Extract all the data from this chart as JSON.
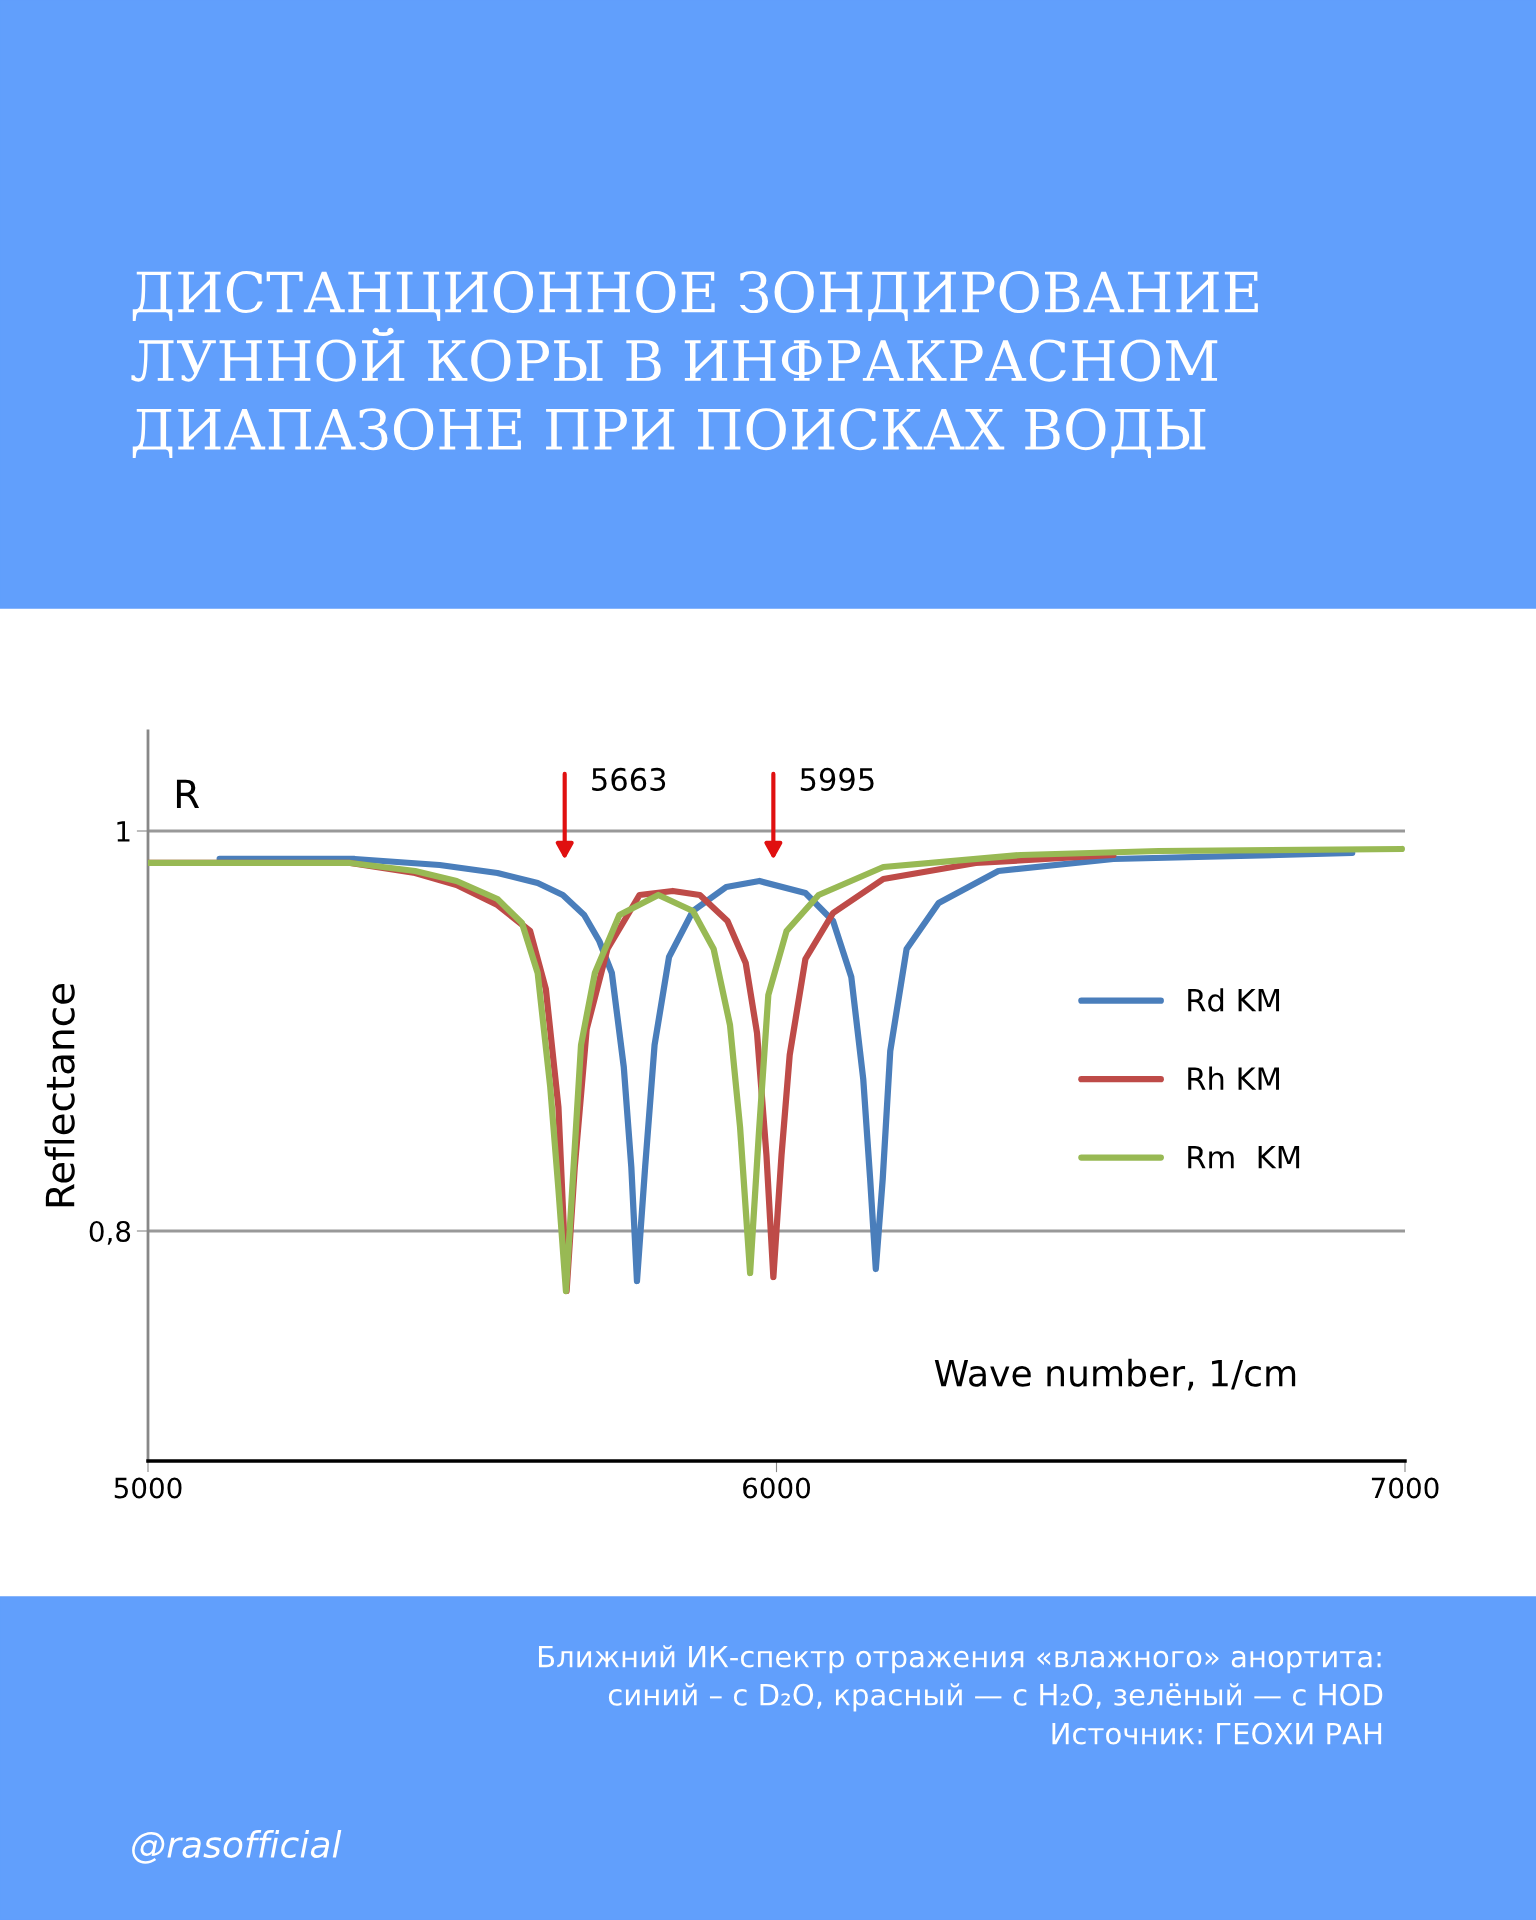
{
  "chart_data": {
    "type": "line",
    "title": "ДИСТАНЦИОННОЕ ЗОНДИРОВАНИЕ\nЛУННОЙ КОРЫ В ИНФРАКРАСНОМ\nДИАПАЗОНЕ ПРИ ПОИСКАХ ВОДЫ",
    "xlabel": "Wave number, 1/cm",
    "ylabel": "Reflectance",
    "xlim": [
      5000,
      7000
    ],
    "xticks": [
      5000,
      6000,
      7000
    ],
    "ylim": [
      0.685,
      1.05
    ],
    "yticks": [
      {
        "value": 0.8,
        "label": "0,8"
      },
      1
    ],
    "grid": "y",
    "legend": "right",
    "marker": "none",
    "line_style": "solid",
    "series": [
      {
        "name": "Rd KM",
        "color": "#4a7ebb",
        "x": [
          5114,
          5329,
          5464,
          5556,
          5620,
          5660,
          5694,
          5718,
          5738,
          5757,
          5769,
          5778,
          5791,
          5806,
          5829,
          5867,
          5920,
          5973,
          6046,
          6090,
          6119,
          6138,
          6149,
          6158,
          6169,
          6181,
          6207,
          6258,
          6353,
          6536,
          6916
        ],
        "values": [
          0.986,
          0.986,
          0.983,
          0.979,
          0.974,
          0.968,
          0.958,
          0.945,
          0.929,
          0.882,
          0.832,
          0.775,
          0.832,
          0.893,
          0.937,
          0.96,
          0.972,
          0.975,
          0.969,
          0.955,
          0.927,
          0.876,
          0.826,
          0.781,
          0.826,
          0.89,
          0.941,
          0.964,
          0.98,
          0.986,
          0.989
        ]
      },
      {
        "name": "Rh KM",
        "color": "#be4b48",
        "x": [
          5000,
          5322,
          5425,
          5491,
          5556,
          5608,
          5633,
          5653,
          5666,
          5679,
          5698,
          5731,
          5782,
          5835,
          5878,
          5922,
          5951,
          5969,
          5984,
          5995,
          6008,
          6021,
          6046,
          6090,
          6170,
          6317,
          6536
        ],
        "values": [
          0.984,
          0.984,
          0.979,
          0.973,
          0.963,
          0.95,
          0.921,
          0.862,
          0.77,
          0.832,
          0.901,
          0.941,
          0.968,
          0.97,
          0.968,
          0.955,
          0.934,
          0.899,
          0.838,
          0.777,
          0.838,
          0.888,
          0.936,
          0.959,
          0.976,
          0.984,
          0.988
        ]
      },
      {
        "name": "Rm  KM",
        "color": "#98b954",
        "x": [
          5000,
          5322,
          5425,
          5491,
          5556,
          5595,
          5620,
          5640,
          5653,
          5665,
          5675,
          5689,
          5711,
          5750,
          5812,
          5867,
          5900,
          5926,
          5942,
          5958,
          5972,
          5987,
          6016,
          6067,
          6170,
          6389,
          6608,
          6995
        ],
        "values": [
          0.984,
          0.984,
          0.98,
          0.975,
          0.966,
          0.954,
          0.929,
          0.872,
          0.821,
          0.77,
          0.821,
          0.893,
          0.929,
          0.958,
          0.968,
          0.96,
          0.941,
          0.903,
          0.852,
          0.779,
          0.849,
          0.918,
          0.95,
          0.968,
          0.982,
          0.988,
          0.99,
          0.991
        ]
      }
    ],
    "annotations": [
      "5663",
      "5995",
      "R",
      "Ближний ИК-спектр отражения «влажного» анортита:\nсиний – с D₂O, красный — с H₂O, зелёный — с HOD",
      "Источник: ГЕОХИ РАН",
      "@rasofficial"
    ]
  }
}
